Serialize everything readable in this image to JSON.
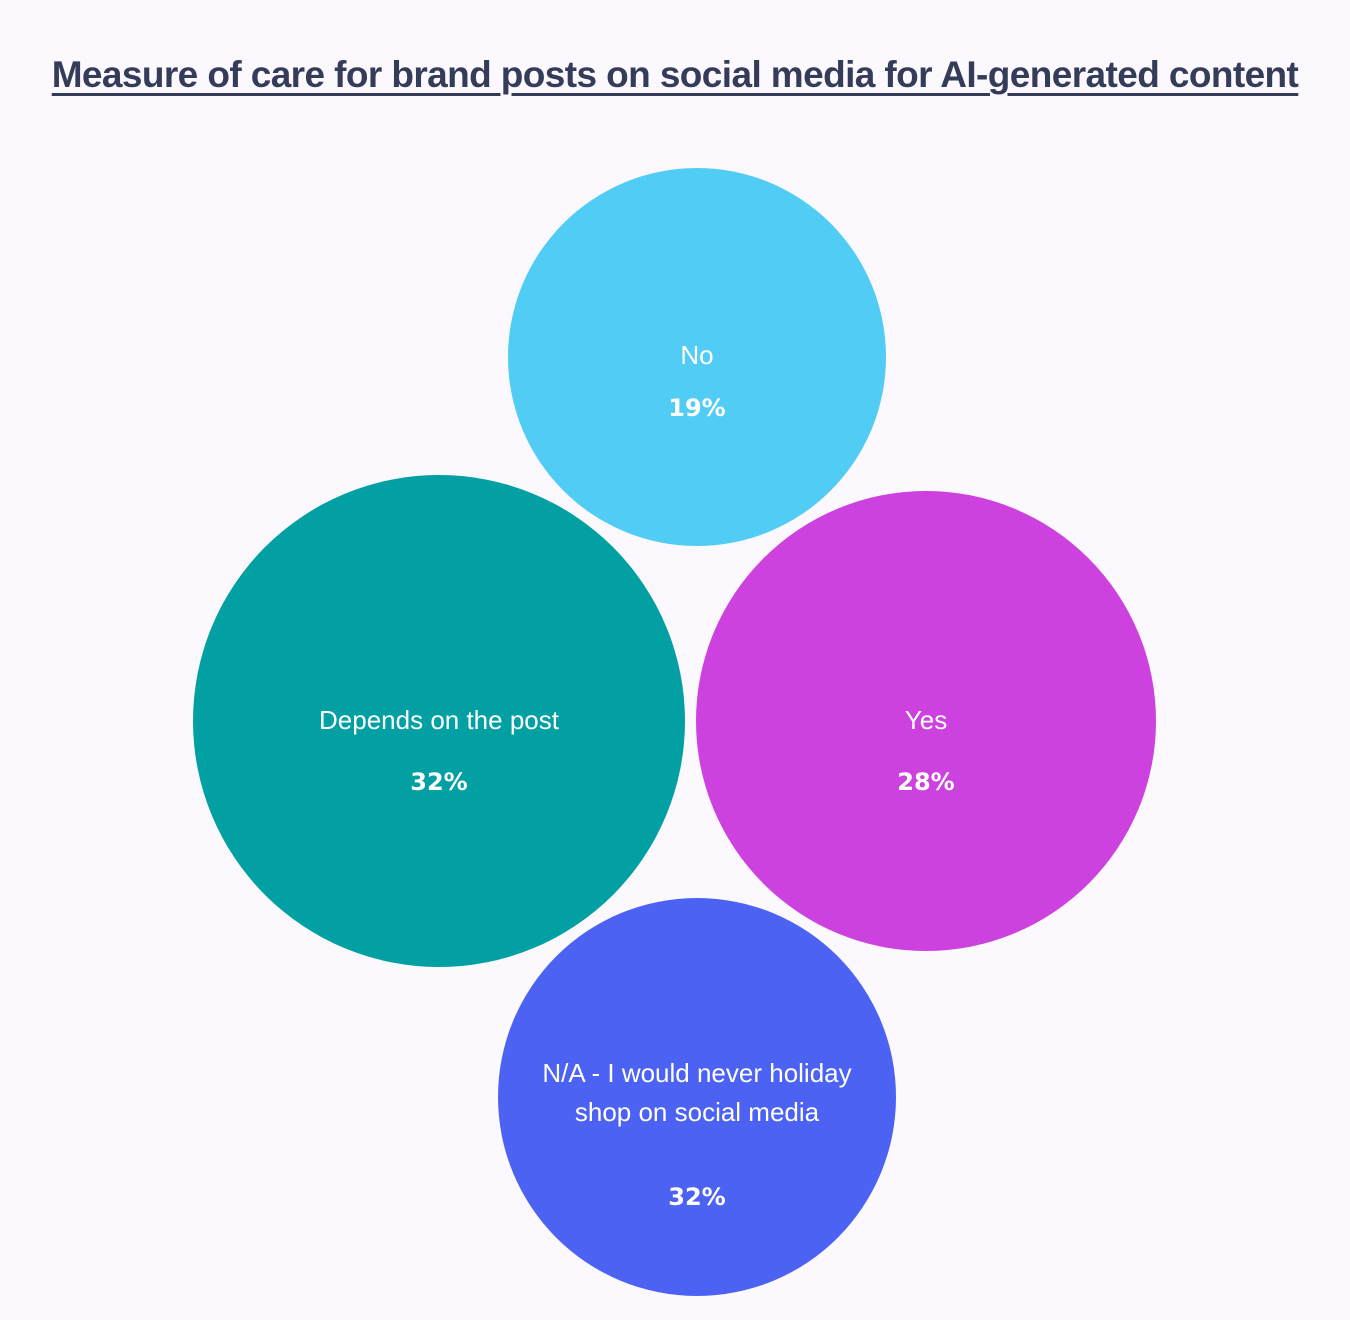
{
  "chart_data": {
    "type": "bubble",
    "title": "Measure of care for brand posts on social media for AI-generated content",
    "unit": "%",
    "series": [
      {
        "name": "No",
        "value": 19,
        "value_label": "19%",
        "color": "#51cdf5"
      },
      {
        "name": "Depends on the post",
        "value": 32,
        "value_label": "32%",
        "color": "#02a0a3"
      },
      {
        "name": "Yes",
        "value": 28,
        "value_label": "28%",
        "color": "#cd41de"
      },
      {
        "name": "N/A - I would never holiday shop on social media",
        "value": 32,
        "value_label": "32%",
        "color": "#4c62f3"
      }
    ]
  }
}
